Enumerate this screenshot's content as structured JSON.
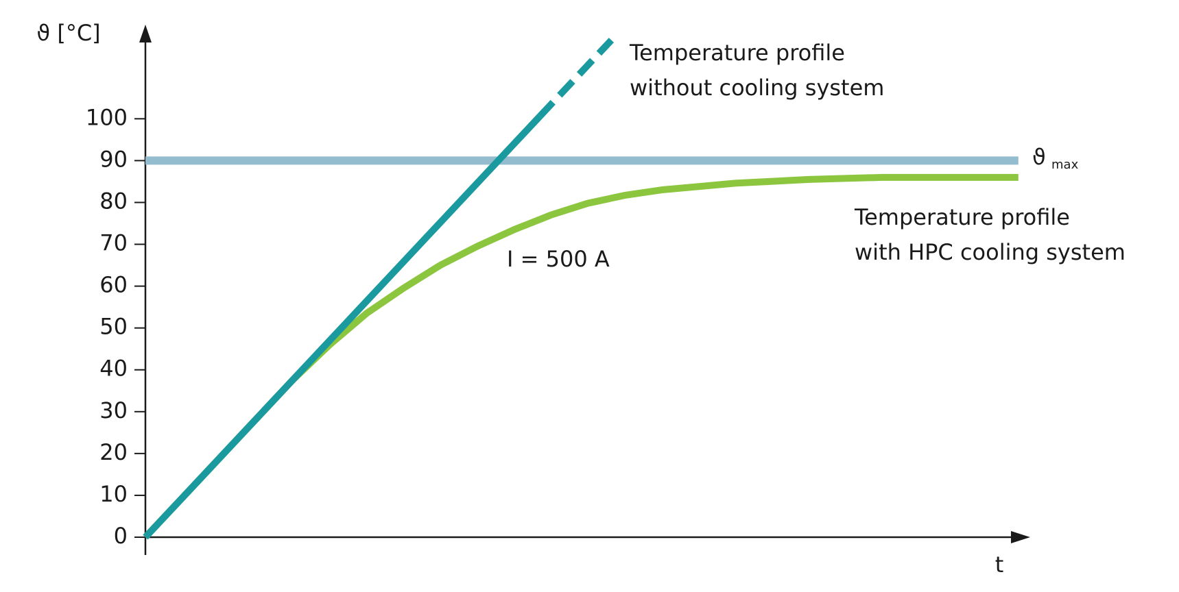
{
  "chart_data": {
    "type": "line",
    "y_label": "ϑ [°C]",
    "x_label": "t",
    "ylim": [
      0,
      122
    ],
    "yticks": [
      0,
      10,
      20,
      30,
      40,
      50,
      60,
      70,
      80,
      90,
      100
    ],
    "xlim": [
      0,
      12
    ],
    "series": [
      {
        "label": [
          "Temperature profile",
          "without cooling system"
        ],
        "color": "#1a9a9e",
        "dashed": false,
        "x": [
          0,
          5.35
        ],
        "values": [
          0,
          100.6
        ]
      },
      {
        "color": "#1a9a9e",
        "dashed": true,
        "x": [
          5.35,
          6.32
        ],
        "values": [
          100.6,
          118.8
        ]
      },
      {
        "label": [
          "Temperature profile",
          "with HPC cooling system"
        ],
        "color": "#8cc63f",
        "dashed": false,
        "x": [
          0,
          1,
          2,
          2.5,
          3,
          3.5,
          4,
          4.5,
          5,
          5.5,
          6,
          6.5,
          7,
          8,
          9,
          10,
          11.84
        ],
        "values": [
          0,
          18.8,
          37.6,
          46,
          53.5,
          59.5,
          65,
          69.5,
          73.5,
          77,
          79.8,
          81.7,
          83,
          84.6,
          85.5,
          86,
          86
        ]
      },
      {
        "name": "ϑ",
        "name_sub": "max",
        "color": "#94bccf",
        "dashed": false,
        "x": [
          0,
          11.84
        ],
        "values": [
          90,
          90
        ]
      }
    ],
    "annotations": [
      "I = 500 A"
    ]
  }
}
